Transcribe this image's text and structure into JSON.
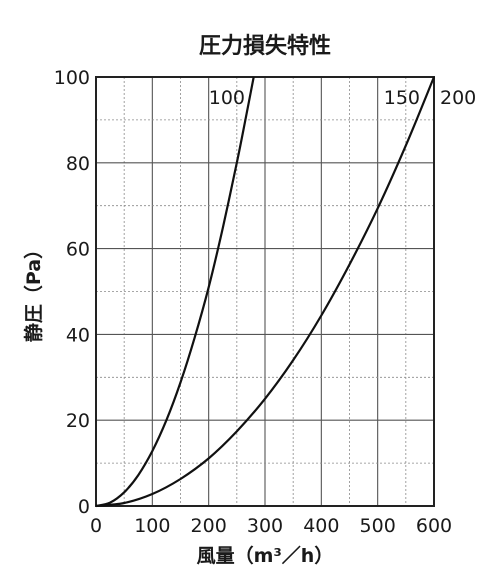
{
  "chart_data": {
    "type": "line",
    "title": "圧力損失特性",
    "xlabel": "風量（m³／h）",
    "ylabel": "静圧（Pa）",
    "xlim": [
      0,
      600
    ],
    "ylim": [
      0,
      100
    ],
    "xticks": [
      0,
      100,
      200,
      300,
      400,
      500,
      600
    ],
    "yticks": [
      0,
      20,
      40,
      60,
      80,
      100
    ],
    "xtick_labels": [
      "0",
      "100",
      "200",
      "300",
      "400",
      "500",
      "600"
    ],
    "ytick_labels": [
      "0",
      "20",
      "40",
      "60",
      "80",
      "100"
    ],
    "grid": true,
    "series": [
      {
        "name": "100",
        "x": [
          0,
          25,
          50,
          75,
          100,
          125,
          150,
          175,
          200,
          225,
          250,
          265,
          280
        ],
        "y": [
          0,
          0.8,
          3.2,
          7.2,
          12.8,
          20,
          28.8,
          39.2,
          51,
          64.8,
          80,
          89.9,
          100
        ]
      },
      {
        "name": "150／200",
        "x": [
          0,
          50,
          100,
          150,
          200,
          250,
          300,
          350,
          400,
          450,
          500,
          550,
          600
        ],
        "y": [
          0,
          0.7,
          2.8,
          6.3,
          11.1,
          17.4,
          25,
          34,
          44.4,
          56.3,
          69.4,
          84,
          100
        ]
      }
    ],
    "series_labels": [
      "100",
      "150",
      "200"
    ]
  }
}
